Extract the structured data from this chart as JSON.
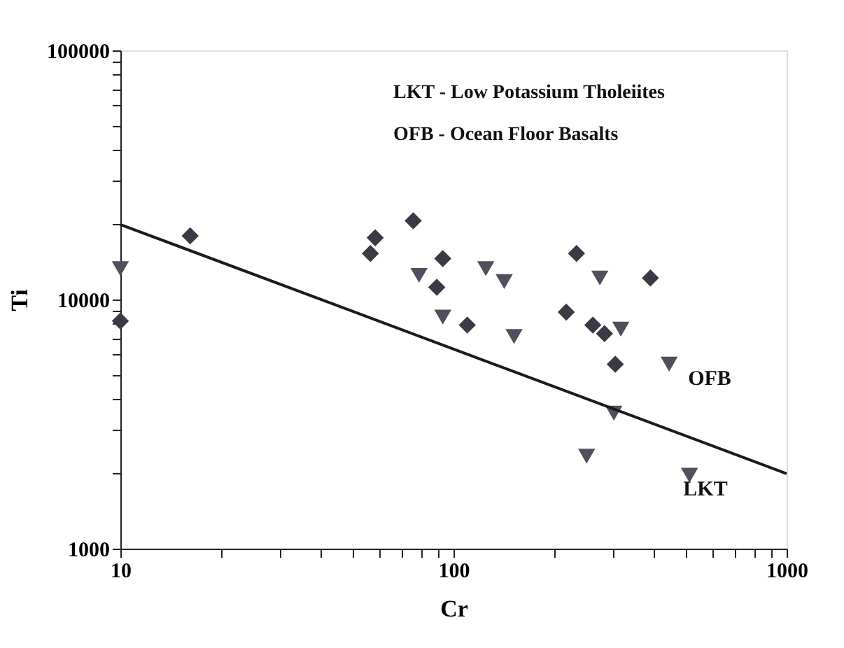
{
  "chart_data": {
    "type": "scatter",
    "xlabel": "Cr",
    "ylabel": "Ti",
    "log": "xy",
    "grid": false,
    "xlim": [
      10,
      1000
    ],
    "ylim": [
      1000,
      100000
    ],
    "xticks": [
      10,
      {
        "value": 20,
        "label": null
      },
      {
        "value": 30,
        "label": null
      },
      {
        "value": 40,
        "label": null
      },
      {
        "value": 50,
        "label": null
      },
      {
        "value": 60,
        "label": null
      },
      {
        "value": 70,
        "label": null
      },
      {
        "value": 80,
        "label": null
      },
      {
        "value": 90,
        "label": null
      },
      100,
      {
        "value": 200,
        "label": null
      },
      {
        "value": 300,
        "label": null
      },
      {
        "value": 400,
        "label": null
      },
      {
        "value": 500,
        "label": null
      },
      {
        "value": 600,
        "label": null
      },
      {
        "value": 700,
        "label": null
      },
      {
        "value": 800,
        "label": null
      },
      {
        "value": 900,
        "label": null
      },
      1000
    ],
    "yticks": [
      1000,
      {
        "value": 2000,
        "label": null
      },
      {
        "value": 3000,
        "label": null
      },
      {
        "value": 4000,
        "label": null
      },
      {
        "value": 5000,
        "label": null
      },
      {
        "value": 6000,
        "label": null
      },
      {
        "value": 7000,
        "label": null
      },
      {
        "value": 8000,
        "label": null
      },
      {
        "value": 9000,
        "label": null
      },
      10000,
      {
        "value": 20000,
        "label": null
      },
      {
        "value": 30000,
        "label": null
      },
      {
        "value": 40000,
        "label": null
      },
      {
        "value": 50000,
        "label": null
      },
      {
        "value": 60000,
        "label": null
      },
      {
        "value": 70000,
        "label": null
      },
      {
        "value": 80000,
        "label": null
      },
      {
        "value": 90000,
        "label": null
      },
      100000
    ],
    "series": [
      {
        "type": "scatter",
        "marker": "diamond",
        "color": "#3a3a44",
        "x": [
          10,
          16.2,
          75.7,
          58.2,
          56.3,
          92.9,
          89.1,
          110,
          234,
          390,
          218,
          262,
          284,
          306
        ],
        "values": [
          8200,
          18000,
          20700,
          17700,
          15300,
          14600,
          11200,
          7900,
          15300,
          12200,
          8900,
          7900,
          7300,
          5500
        ]
      },
      {
        "type": "scatter",
        "marker": "triangle",
        "color": "#50505c",
        "x": [
          10,
          78.8,
          125,
          142,
          92.9,
          152,
          275,
          318,
          444,
          303,
          251,
          511
        ],
        "values": [
          13300,
          12500,
          13300,
          11800,
          8500,
          7100,
          12200,
          7600,
          5500,
          3500,
          2350,
          1970
        ]
      },
      {
        "type": "line",
        "marker": "none",
        "line_style": "solid",
        "color": "#1a1a22",
        "x": [
          10,
          1000
        ],
        "values": [
          20000,
          2000
        ]
      }
    ],
    "annotations": [
      "LKT - Low Potassium Tholeiites",
      "OFB - Ocean Floor Basalts",
      "OFB",
      "LKT"
    ]
  }
}
